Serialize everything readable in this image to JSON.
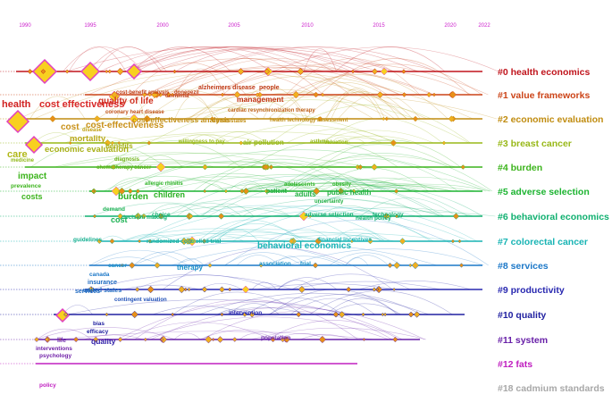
{
  "years": [
    "1990",
    "1995",
    "2000",
    "2005",
    "2010",
    "2015",
    "2020",
    "2022"
  ],
  "clusters": [
    {
      "label": "#0 health economics",
      "color": "#c0141c"
    },
    {
      "label": "#1 value frameworks",
      "color": "#cc4418"
    },
    {
      "label": "#2 economic evaluation",
      "color": "#c08c10"
    },
    {
      "label": "#3 breast cancer",
      "color": "#98b818"
    },
    {
      "label": "#4 burden",
      "color": "#3cb41c"
    },
    {
      "label": "#5 adverse selection",
      "color": "#1cb430"
    },
    {
      "label": "#6 behavioral economics",
      "color": "#10b070"
    },
    {
      "label": "#7 colorectal cancer",
      "color": "#18b4b4"
    },
    {
      "label": "#8 services",
      "color": "#1c78c8"
    },
    {
      "label": "#9 productivity",
      "color": "#2828b0"
    },
    {
      "label": "#10 quality",
      "color": "#2020a0"
    },
    {
      "label": "#11 system",
      "color": "#6820a8"
    },
    {
      "label": "#12 fats",
      "color": "#c020c0"
    },
    {
      "label": "#18 cadmium standards",
      "color": "#a8a8a8"
    }
  ],
  "keywords": [
    {
      "text": "alzheimers disease",
      "color": "#c03c18"
    },
    {
      "text": "people",
      "color": "#c03c18"
    },
    {
      "text": "quality of life",
      "color": "#d03020"
    },
    {
      "text": "cost-benefit analysis",
      "color": "#c04018"
    },
    {
      "text": "donepezil",
      "color": "#c04018"
    },
    {
      "text": "dementia",
      "color": "#c04018"
    },
    {
      "text": "management",
      "color": "#c03010"
    },
    {
      "text": "health",
      "color": "#d02020"
    },
    {
      "text": "cost effectiveness",
      "color": "#d82828"
    },
    {
      "text": "coronary heart disease",
      "color": "#c05018"
    },
    {
      "text": "cardiac resynchronization therapy",
      "color": "#c06018"
    },
    {
      "text": "cost",
      "color": "#c89018"
    },
    {
      "text": "cost-effectiveness",
      "color": "#c89018"
    },
    {
      "text": "cost-effectiveness analysis",
      "color": "#c08c10"
    },
    {
      "text": "united-states",
      "color": "#c08c10"
    },
    {
      "text": "health technology assessment",
      "color": "#c08c10"
    },
    {
      "text": "disease",
      "color": "#c0a010"
    },
    {
      "text": "mortality",
      "color": "#b8a818"
    },
    {
      "text": "benefits",
      "color": "#a8b018"
    },
    {
      "text": "economic evaluation",
      "color": "#a8b018"
    },
    {
      "text": "willingness to pay",
      "color": "#98b818"
    },
    {
      "text": "air pollution",
      "color": "#98b818"
    },
    {
      "text": "asthma",
      "color": "#98b818"
    },
    {
      "text": "valuation",
      "color": "#98b818"
    },
    {
      "text": "care",
      "color": "#b0b818"
    },
    {
      "text": "medicine",
      "color": "#90b818"
    },
    {
      "text": "diagnosis",
      "color": "#70b418"
    },
    {
      "text": "chemotherapy",
      "color": "#5cb418"
    },
    {
      "text": "cancer",
      "color": "#5cb418"
    },
    {
      "text": "impact",
      "color": "#3cb41c"
    },
    {
      "text": "prevalence",
      "color": "#3cb41c"
    },
    {
      "text": "costs",
      "color": "#3cb41c"
    },
    {
      "text": "allergic rhinitis",
      "color": "#30b428"
    },
    {
      "text": "adolescents",
      "color": "#30b428"
    },
    {
      "text": "obesity",
      "color": "#30b428"
    },
    {
      "text": "burden",
      "color": "#28b020"
    },
    {
      "text": "children",
      "color": "#28b020"
    },
    {
      "text": "patient",
      "color": "#20b040"
    },
    {
      "text": "adults",
      "color": "#20b040"
    },
    {
      "text": "public health",
      "color": "#20b040"
    },
    {
      "text": "uncertainty",
      "color": "#20b040"
    },
    {
      "text": "demand",
      "color": "#18b050"
    },
    {
      "text": "cost",
      "color": "#18b050"
    },
    {
      "text": "decision making",
      "color": "#10b070"
    },
    {
      "text": "choice",
      "color": "#10b070"
    },
    {
      "text": "adverse selection",
      "color": "#10b070"
    },
    {
      "text": "technology",
      "color": "#10b070"
    },
    {
      "text": "health policy",
      "color": "#10b070"
    },
    {
      "text": "guidelines",
      "color": "#18b090"
    },
    {
      "text": "randomized controlled trial",
      "color": "#18b0a0"
    },
    {
      "text": "behavioral economics",
      "color": "#18b4b4"
    },
    {
      "text": "financial incentives",
      "color": "#18b4b4"
    },
    {
      "text": "cancer",
      "color": "#1890c8"
    },
    {
      "text": "therapy",
      "color": "#1890c8"
    },
    {
      "text": "association",
      "color": "#1890c8"
    },
    {
      "text": "trial",
      "color": "#1890c8"
    },
    {
      "text": "canada",
      "color": "#1c78c8"
    },
    {
      "text": "insurance",
      "color": "#1c68c0"
    },
    {
      "text": "services",
      "color": "#1c68c0"
    },
    {
      "text": "united states",
      "color": "#1c68c0"
    },
    {
      "text": "contingent valuation",
      "color": "#2050b8"
    },
    {
      "text": "intervention",
      "color": "#2828b0"
    },
    {
      "text": "bias",
      "color": "#2020a0"
    },
    {
      "text": "efficacy",
      "color": "#2020a0"
    },
    {
      "text": "quality",
      "color": "#3020a8"
    },
    {
      "text": "population",
      "color": "#6820a8"
    },
    {
      "text": "life",
      "color": "#6820a8"
    },
    {
      "text": "interventions",
      "color": "#7020a8"
    },
    {
      "text": "psychology",
      "color": "#7020a8"
    },
    {
      "text": "policy",
      "color": "#c020c0"
    }
  ]
}
